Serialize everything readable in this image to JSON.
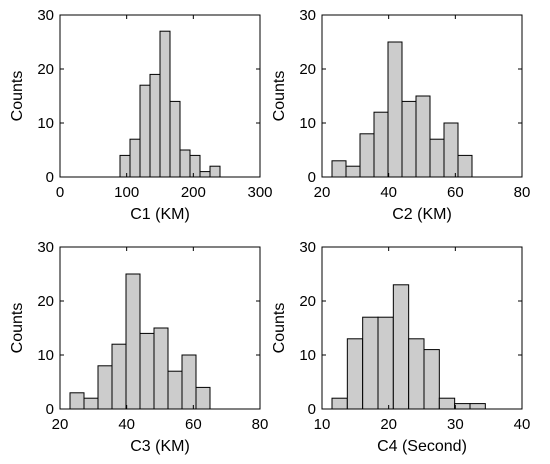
{
  "chart_data": [
    {
      "type": "bar",
      "title": "",
      "xlabel": "C1 (KM)",
      "ylabel": "Counts",
      "xlim": [
        0,
        300
      ],
      "ylim": [
        0,
        30
      ],
      "xticks": [
        0,
        100,
        200,
        300
      ],
      "yticks": [
        0,
        10,
        20,
        30
      ],
      "grid": false,
      "bin_edges": [
        90,
        105,
        120,
        135,
        150,
        165,
        180,
        195,
        210,
        225,
        240
      ],
      "values": [
        4,
        7,
        17,
        19,
        27,
        14,
        5,
        4,
        1,
        2
      ]
    },
    {
      "type": "bar",
      "title": "",
      "xlabel": "C2 (KM)",
      "ylabel": "Counts",
      "xlim": [
        20,
        80
      ],
      "ylim": [
        0,
        30
      ],
      "xticks": [
        20,
        40,
        60,
        80
      ],
      "yticks": [
        0,
        10,
        20,
        30
      ],
      "grid": false,
      "bin_edges": [
        23,
        27.2,
        31.4,
        35.6,
        39.8,
        44,
        48.2,
        52.4,
        56.6,
        60.8,
        65
      ],
      "values": [
        3,
        2,
        8,
        12,
        25,
        14,
        15,
        7,
        10,
        4
      ]
    },
    {
      "type": "bar",
      "title": "",
      "xlabel": "C3 (KM)",
      "ylabel": "Counts",
      "xlim": [
        20,
        80
      ],
      "ylim": [
        0,
        30
      ],
      "xticks": [
        20,
        40,
        60,
        80
      ],
      "yticks": [
        0,
        10,
        20,
        30
      ],
      "grid": false,
      "bin_edges": [
        23,
        27.2,
        31.4,
        35.6,
        39.8,
        44,
        48.2,
        52.4,
        56.6,
        60.8,
        65
      ],
      "values": [
        3,
        2,
        8,
        12,
        25,
        14,
        15,
        7,
        10,
        4
      ]
    },
    {
      "type": "bar",
      "title": "",
      "xlabel": "C4 (Second)",
      "ylabel": "Counts",
      "xlim": [
        10,
        40
      ],
      "ylim": [
        0,
        30
      ],
      "xticks": [
        10,
        20,
        30,
        40
      ],
      "yticks": [
        0,
        10,
        20,
        30
      ],
      "grid": false,
      "bin_edges": [
        11.5,
        13.8,
        16.1,
        18.4,
        20.7,
        23,
        25.3,
        27.6,
        29.9,
        32.2,
        34.5
      ],
      "values": [
        2,
        13,
        17,
        17,
        23,
        13,
        11,
        2,
        1,
        1
      ]
    }
  ],
  "colors": {
    "bar_fill": "#cccccc",
    "bar_edge": "#000000",
    "axes": "#000000",
    "background": "#ffffff"
  }
}
